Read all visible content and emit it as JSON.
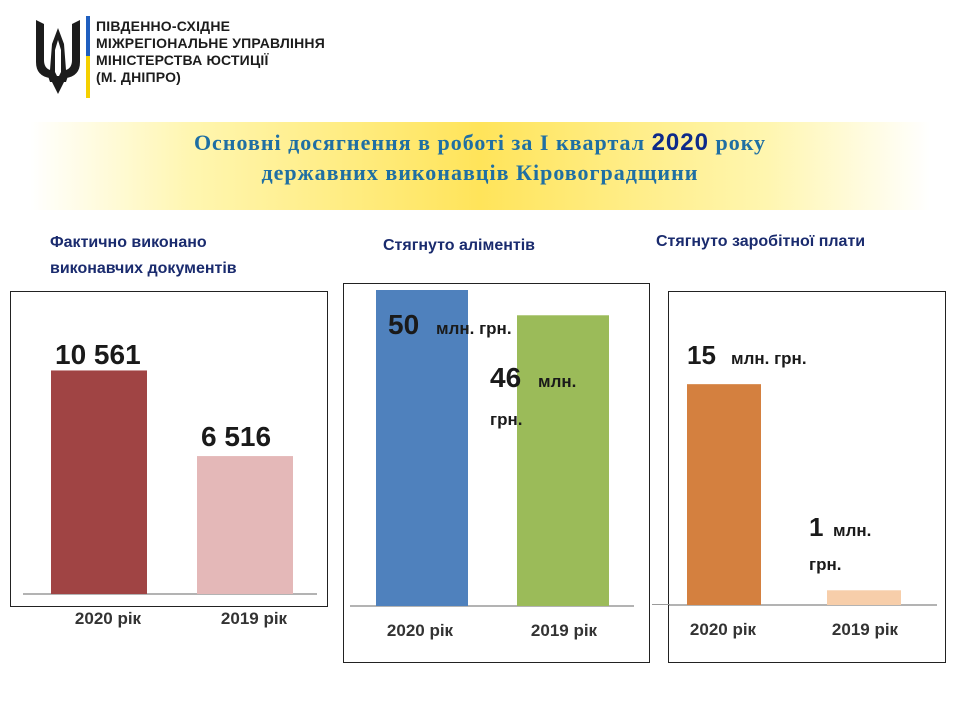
{
  "header": {
    "org_lines": [
      "ПІВДЕННО-СХІДНЕ",
      "МІЖРЕГІОНАЛЬНЕ УПРАВЛІННЯ",
      "МІНІСТЕРСТВА ЮСТИЦІЇ",
      "(М. ДНІПРО)"
    ]
  },
  "title": {
    "line1_before": "Основні досягнення в роботі за І квартал ",
    "year": "2020",
    "line1_after": " року",
    "line2": "державних виконавців Кіровоградщини"
  },
  "colors": {
    "title": "#1f6fa3",
    "heading": "#1a2b6e",
    "chart1_2020": "#a04444",
    "chart1_2019": "#e4b8b8",
    "chart2_2020": "#4f81bd",
    "chart2_2019": "#9bbb59",
    "chart3_2020": "#d4803f",
    "chart3_2019": "#f7ceaa"
  },
  "chart_data": [
    {
      "type": "bar",
      "title": "Фактично виконано виконавчих документів",
      "title_lines": [
        "Фактично виконано",
        "виконавчих документів"
      ],
      "categories": [
        "2020 рік",
        "2019 рік"
      ],
      "values": [
        10561,
        6516
      ],
      "data_labels": [
        [
          "10 561",
          ""
        ],
        [
          "6 516",
          ""
        ]
      ],
      "ylim": [
        0,
        12000
      ]
    },
    {
      "type": "bar",
      "title": "Стягнуто аліментів",
      "categories": [
        "2020 рік",
        "2019 рік"
      ],
      "values": [
        50,
        46
      ],
      "unit": "млн. грн.",
      "data_labels": [
        [
          "50",
          "млн. грн."
        ],
        [
          "46",
          "млн.",
          "грн."
        ]
      ],
      "ylim": [
        0,
        50
      ]
    },
    {
      "type": "bar",
      "title": "Стягнуто заробітної плати",
      "categories": [
        "2020 рік",
        "2019 рік"
      ],
      "values": [
        15,
        1
      ],
      "unit": "млн. грн.",
      "data_labels": [
        [
          "15",
          "млн. грн."
        ],
        [
          "1",
          "млн.",
          "грн."
        ]
      ],
      "ylim": [
        0,
        18
      ]
    }
  ]
}
